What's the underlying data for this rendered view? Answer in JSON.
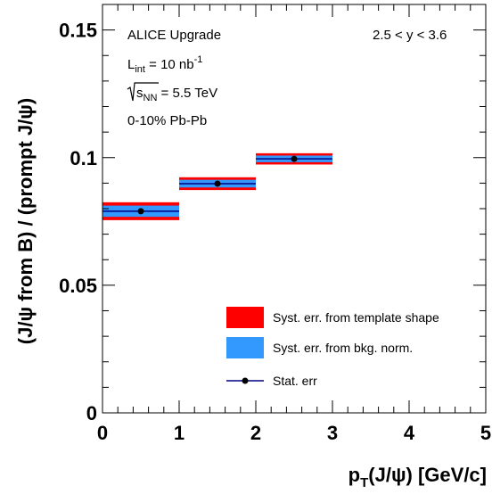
{
  "chart_data": {
    "type": "scatter",
    "xlabel_main": "p",
    "xlabel_sub": "T",
    "xlabel_rest": "(J/ψ)  [GeV/c]",
    "ylabel": "(J/ψ from B) / (prompt J/ψ)",
    "xlim": [
      0,
      5
    ],
    "ylim": [
      0,
      0.16
    ],
    "x_ticks": [
      {
        "value": 0,
        "label": "0"
      },
      {
        "value": 1,
        "label": "1"
      },
      {
        "value": 2,
        "label": "2"
      },
      {
        "value": 3,
        "label": "3"
      },
      {
        "value": 4,
        "label": "4"
      },
      {
        "value": 5,
        "label": "5"
      }
    ],
    "y_ticks": [
      {
        "value": 0,
        "label": "0"
      },
      {
        "value": 0.05,
        "label": "0.05"
      },
      {
        "value": 0.1,
        "label": "0.1"
      },
      {
        "value": 0.15,
        "label": "0.15"
      }
    ],
    "grid": false,
    "legend_position": "bottom-right",
    "colors": {
      "syst_template": "#ff0000",
      "syst_bkg": "#3399ff",
      "stat": "#000080",
      "marker": "#000000"
    },
    "points": [
      {
        "x": 0.5,
        "xlow": 0,
        "xhigh": 1,
        "y": 0.079,
        "syst_template": 0.0035,
        "syst_bkg": 0.0022
      },
      {
        "x": 1.5,
        "xlow": 1,
        "xhigh": 2,
        "y": 0.0898,
        "syst_template": 0.0025,
        "syst_bkg": 0.0015
      },
      {
        "x": 2.5,
        "xlow": 2,
        "xhigh": 3,
        "y": 0.0995,
        "syst_template": 0.0022,
        "syst_bkg": 0.0013
      }
    ],
    "annotations": {
      "title": "ALICE Upgrade",
      "lumi_prefix": "L",
      "lumi_sub": "int",
      "lumi_eq": " = 10 nb",
      "lumi_sup": "-1",
      "energy_prefix": "s",
      "energy_sub": "NN",
      "energy_eq": " = 5.5 TeV",
      "centrality": "0-10% Pb-Pb",
      "rapidity": "2.5 < y < 3.6"
    },
    "legend": [
      {
        "label": "Syst. err. from template shape",
        "kind": "syst_template"
      },
      {
        "label": "Syst. err. from bkg. norm.",
        "kind": "syst_bkg"
      },
      {
        "label": "Stat. err",
        "kind": "stat"
      }
    ]
  }
}
